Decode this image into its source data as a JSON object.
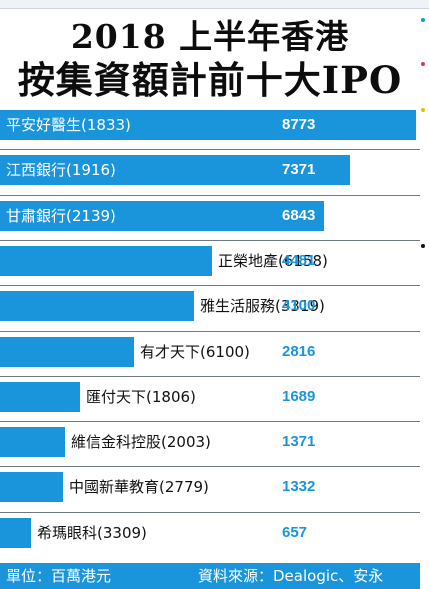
{
  "title": {
    "line1": "2018 上半年香港",
    "line2": "按集資額計前十大IPO"
  },
  "footer": {
    "unit": "單位：百萬港元",
    "source": "資料來源：Dealogic、安永"
  },
  "colors": {
    "bar": "#1a95dc",
    "footer": "#1a95dc",
    "value_outside": "#1a95dc"
  },
  "chart_data": {
    "type": "bar",
    "orientation": "horizontal",
    "title": "2018 上半年香港 按集資額計前十大IPO",
    "unit": "單位：百萬港元",
    "source": "資料來源：Dealogic、安永",
    "categories": [
      "平安好醫生(1833)",
      "江西銀行(1916)",
      "甘肅銀行(2139)",
      "正榮地產(6158)",
      "雅生活服務(3319)",
      "有才天下(6100)",
      "匯付天下(1806)",
      "維信金科控股(2003)",
      "中國新華教育(2779)",
      "希瑪眼科(3309)"
    ],
    "values": [
      8773,
      7371,
      6843,
      4481,
      4100,
      2816,
      1689,
      1371,
      1332,
      657
    ],
    "value_labels": [
      "8773",
      "7371",
      "6843",
      "4481",
      "4100",
      "2816",
      "1689",
      "1371",
      "1332",
      "657"
    ],
    "xlim": [
      0,
      8773
    ],
    "grid": false,
    "legend": "none"
  }
}
